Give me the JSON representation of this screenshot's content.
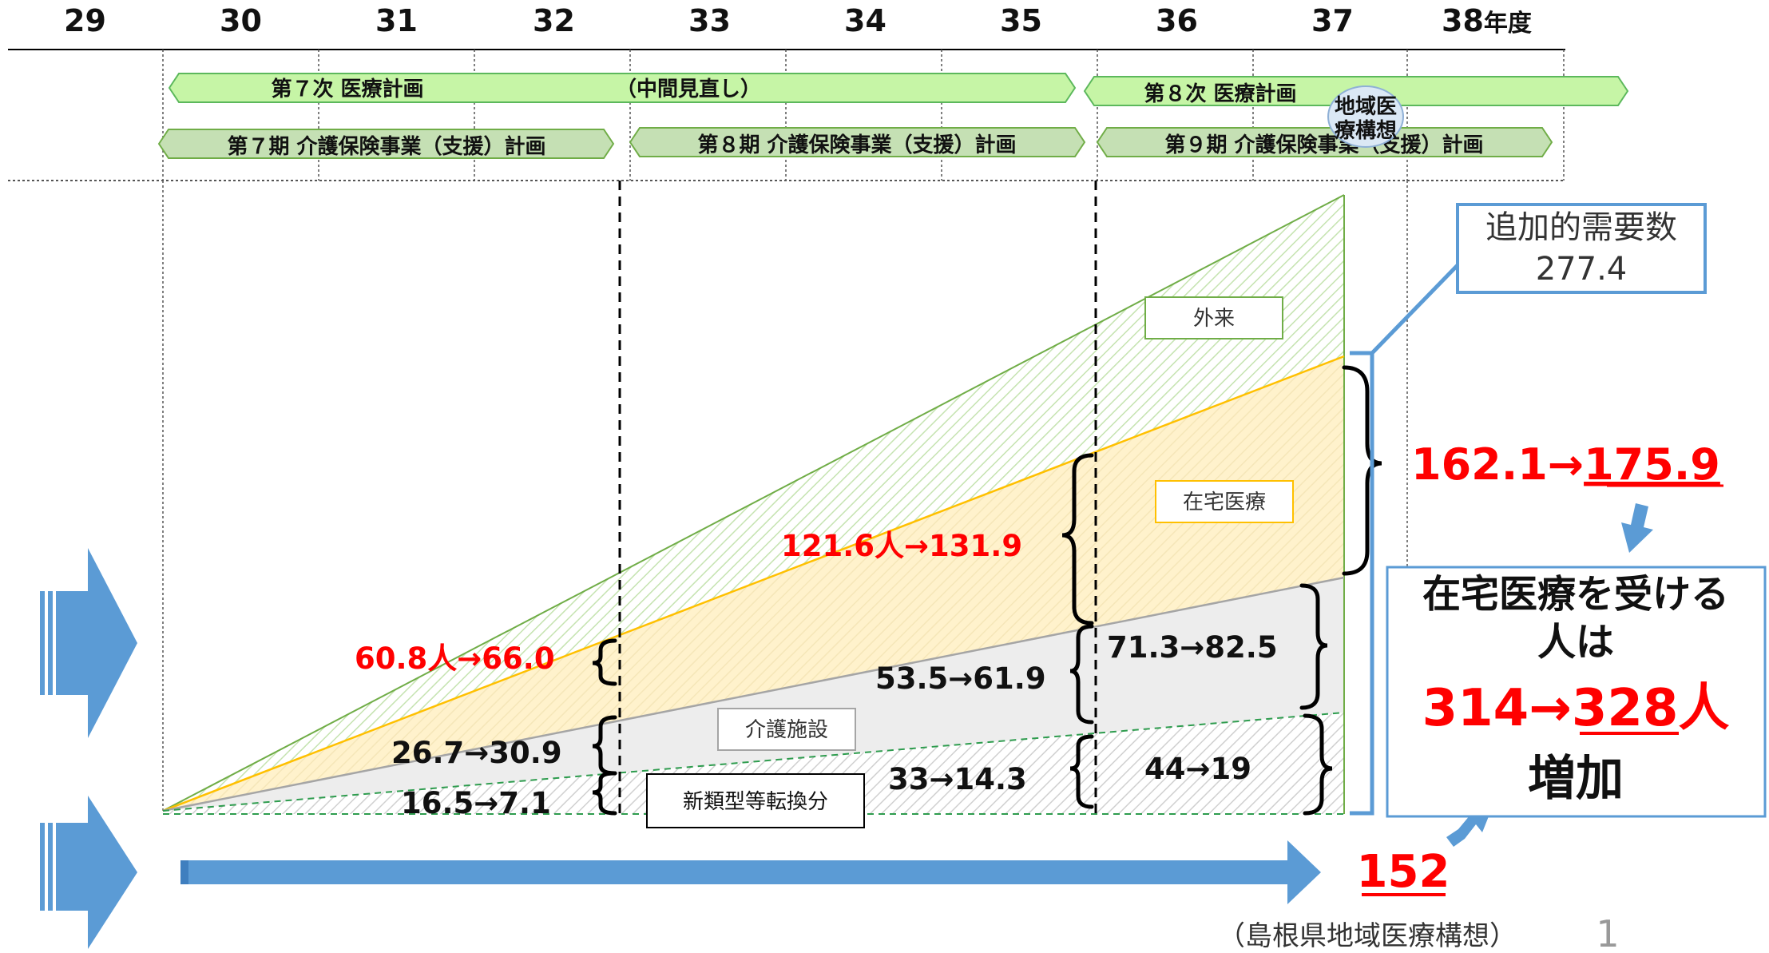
{
  "years": [
    "29",
    "30",
    "31",
    "32",
    "33",
    "34",
    "35",
    "36",
    "37",
    "38"
  ],
  "year_suffix": "年度",
  "plans": {
    "medical_7": "第７次 医療計画",
    "medical_midterm": "（中間見直し）",
    "medical_8": "第８次 医療計画",
    "care_7": "第７期 介護保険事業（支援）計画",
    "care_8": "第８期 介護保険事業（支援）計画",
    "care_9": "第９期 介護保険事業（支援）計画",
    "regional_vision_line1": "地域医",
    "regional_vision_line2": "療構想"
  },
  "areas": {
    "outpatient": "外来",
    "home_care": "在宅医療",
    "care_facility": "介護施設",
    "new_type": "新類型等転換分"
  },
  "values": {
    "home_32": "60.8人→66.0",
    "home_35": "121.6人→131.9",
    "care_35": "53.5→61.9",
    "care_32": "26.7→30.9",
    "new_32": "16.5→7.1",
    "new_35": "33→14.3",
    "care_37": "71.3→82.5",
    "new_37": "44→19",
    "home_37_from": "162.1→",
    "home_37_to": "175.9"
  },
  "additional_demand": {
    "label": "追加的需要数",
    "value": "277.4"
  },
  "summary": {
    "line1": "在宅医療を受ける",
    "line2": "人は",
    "from": "314→",
    "to": "328",
    "unit": "人",
    "line4": "増加"
  },
  "baseline": "152",
  "source": "（島根県地域医療構想）",
  "page_number": "1",
  "colors": {
    "blue_arrow": "#5b9bd5",
    "green_pill": "#c6f5a6",
    "green_pill_border": "#5cb85c",
    "care_pill": "#c5e0b4",
    "outpatient_line": "#70ad47",
    "home_fill": "#fff2cc",
    "home_line": "#ffc000",
    "care_fill": "#ededed",
    "care_line": "#a5a5a5",
    "red": "#ff0000"
  }
}
